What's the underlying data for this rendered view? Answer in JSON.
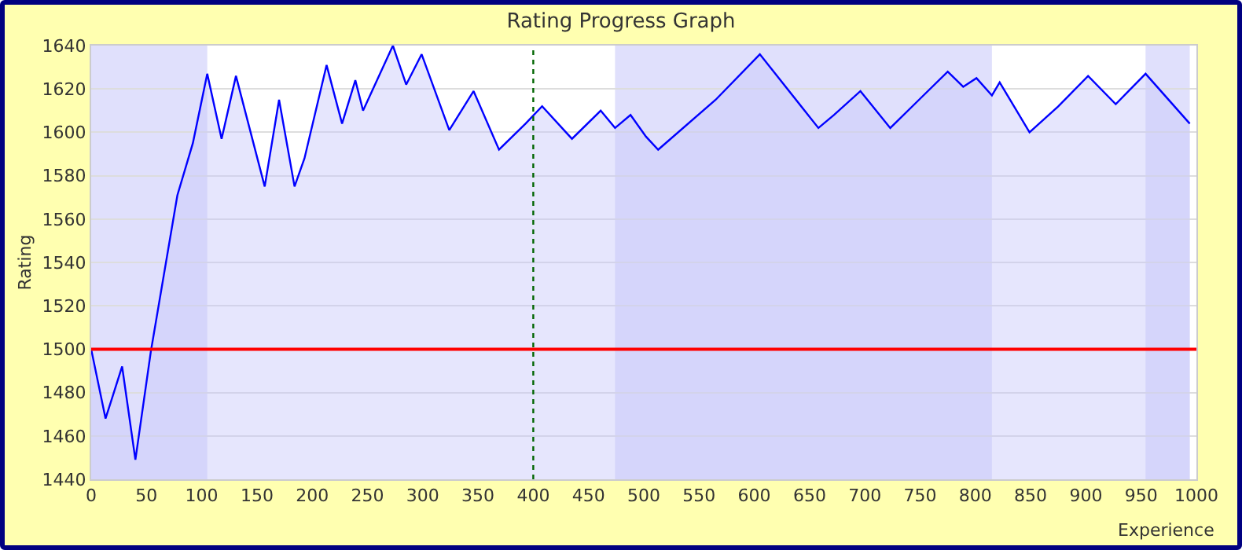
{
  "chart_data": {
    "type": "area",
    "title": "Rating Progress Graph",
    "xlabel": "Experience",
    "ylabel": "Rating",
    "x": [
      0,
      13,
      28,
      40,
      54,
      78,
      92,
      105,
      118,
      131,
      157,
      170,
      184,
      193,
      213,
      227,
      239,
      246,
      273,
      285,
      299,
      324,
      346,
      369,
      393,
      408,
      435,
      461,
      474,
      488,
      502,
      513,
      565,
      605,
      658,
      672,
      696,
      723,
      749,
      775,
      789,
      801,
      815,
      822,
      835,
      849,
      875,
      902,
      927,
      954,
      994
    ],
    "series": [
      {
        "color": "#0000ff",
        "values": [
          1500,
          1468,
          1492,
          1449,
          1499,
          1571,
          1595,
          1627,
          1597,
          1626,
          1575,
          1615,
          1575,
          1588,
          1631,
          1604,
          1624,
          1610,
          1640,
          1622,
          1636,
          1601,
          1619,
          1592,
          1604,
          1612,
          1597,
          1610,
          1602,
          1608,
          1598,
          1592,
          1615,
          1636,
          1602,
          1608,
          1619,
          1602,
          1615,
          1628,
          1621,
          1625,
          1617,
          1623,
          1612,
          1600,
          1612,
          1626,
          1613,
          1627,
          1604
        ]
      }
    ],
    "xlim": [
      0,
      1000
    ],
    "xticks": [
      0,
      50,
      100,
      150,
      200,
      250,
      300,
      350,
      400,
      450,
      500,
      550,
      600,
      650,
      700,
      750,
      800,
      850,
      900,
      950,
      1000
    ],
    "ylim": [
      1440,
      1640
    ],
    "yticks": [
      1440,
      1460,
      1480,
      1500,
      1520,
      1540,
      1560,
      1580,
      1600,
      1620,
      1640
    ],
    "grid": "y",
    "ref_lines": [
      {
        "axis": "y",
        "value": 1500,
        "color": "#ff0000",
        "line_style": "solid"
      },
      {
        "axis": "x",
        "value": 400,
        "color": "#006400",
        "line_style": "dotted"
      }
    ],
    "bands": [
      {
        "axis": "x",
        "from": 0,
        "to": 105,
        "color": "#ccccfa"
      },
      {
        "axis": "x",
        "from": 474,
        "to": 815,
        "color": "#ccccfa"
      },
      {
        "axis": "x",
        "from": 954,
        "to": 994,
        "color": "#ccccfa"
      }
    ]
  }
}
